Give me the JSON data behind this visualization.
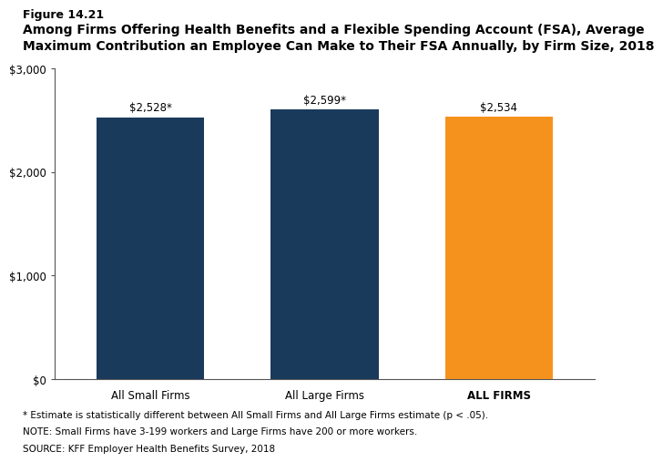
{
  "categories": [
    "All Small Firms",
    "All Large Firms",
    "ALL FIRMS"
  ],
  "values": [
    2528,
    2599,
    2534
  ],
  "bar_colors": [
    "#1a3a5c",
    "#1a3a5c",
    "#f5921e"
  ],
  "bar_labels": [
    "$2,528*",
    "$2,599*",
    "$2,534"
  ],
  "title_line1": "Figure 14.21",
  "title_line2": "Among Firms Offering Health Benefits and a Flexible Spending Account (FSA), Average",
  "title_line3": "Maximum Contribution an Employee Can Make to Their FSA Annually, by Firm Size, 2018",
  "ylim": [
    0,
    3000
  ],
  "yticks": [
    0,
    1000,
    2000,
    3000
  ],
  "ytick_labels": [
    "$0",
    "$1,000",
    "$2,000",
    "$3,000"
  ],
  "footnote1": "* Estimate is statistically different between All Small Firms and All Large Firms estimate (p < .05).",
  "footnote2": "NOTE: Small Firms have 3-199 workers and Large Firms have 200 or more workers.",
  "footnote3": "SOURCE: KFF Employer Health Benefits Survey, 2018",
  "bar_label_fontsize": 8.5,
  "axis_label_fontsize": 8.5,
  "footnote_fontsize": 7.5,
  "title1_fontsize": 9,
  "title2_fontsize": 10,
  "background_color": "#ffffff"
}
